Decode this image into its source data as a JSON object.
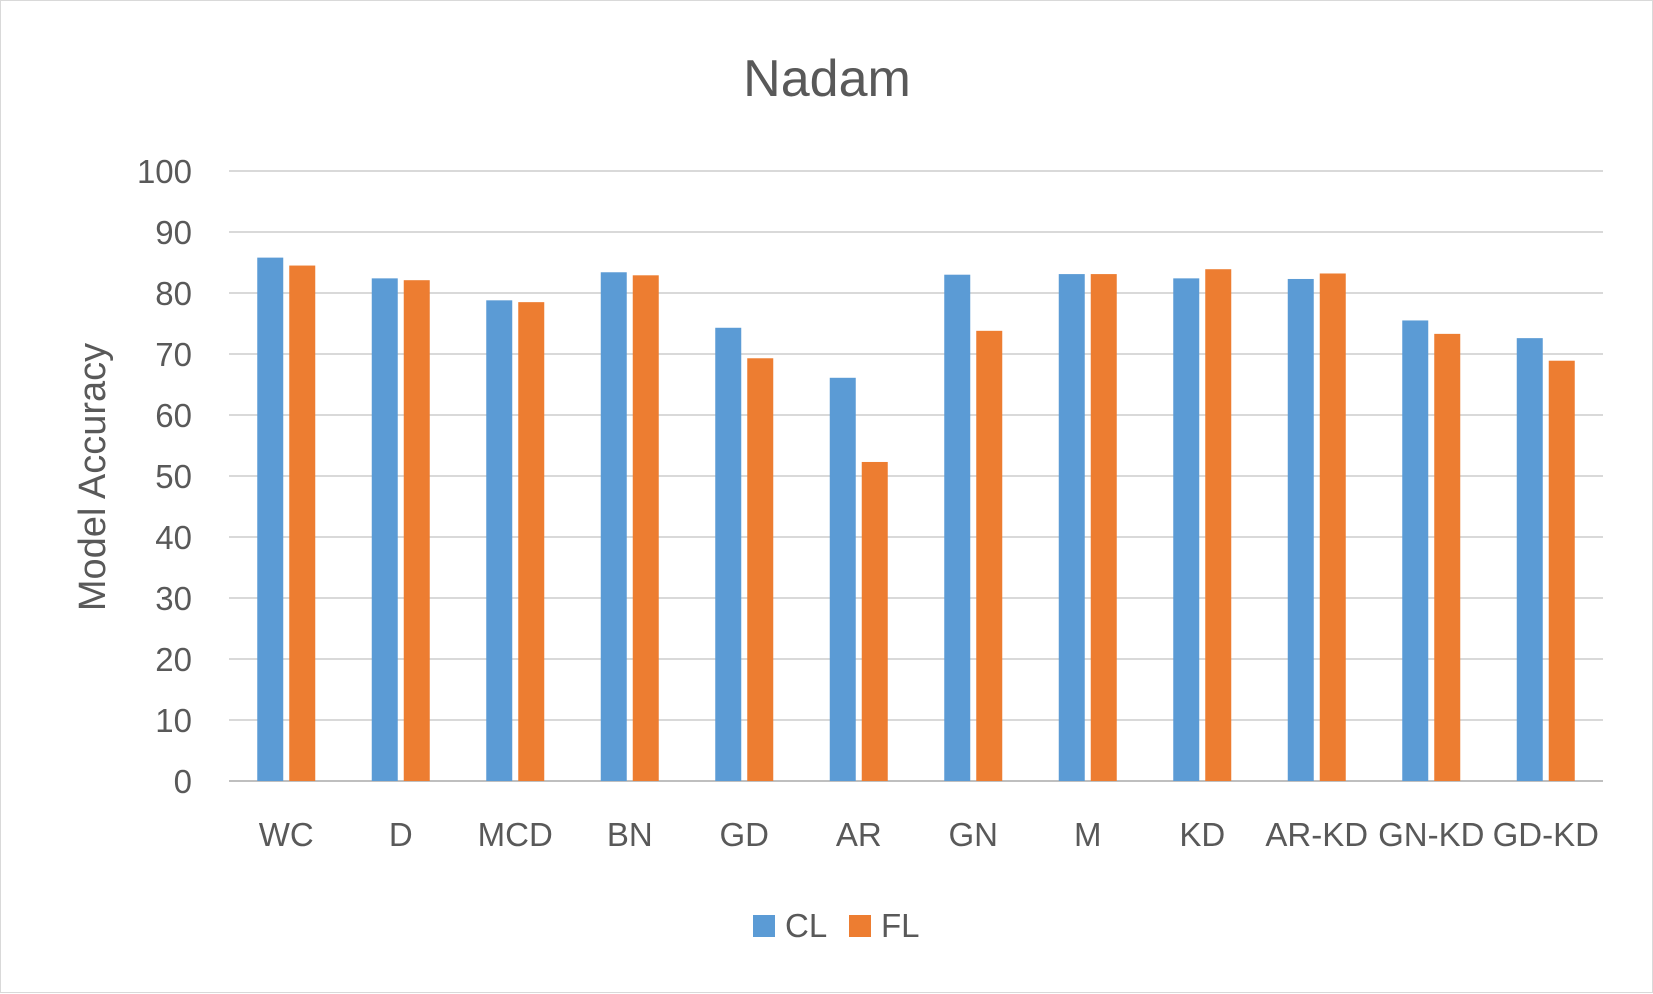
{
  "chart_data": {
    "type": "bar",
    "title": "Nadam",
    "xlabel": "",
    "ylabel": "Model Accuracy",
    "ylim": [
      0,
      100
    ],
    "yticks": [
      0,
      10,
      20,
      30,
      40,
      50,
      60,
      70,
      80,
      90,
      100
    ],
    "grid": true,
    "legend_position": "bottom",
    "categories": [
      "WC",
      "D",
      "MCD",
      "BN",
      "GD",
      "AR",
      "GN",
      "M",
      "KD",
      "AR-KD",
      "GN-KD",
      "GD-KD"
    ],
    "series": [
      {
        "name": "CL",
        "color": "#5b9bd5",
        "values": [
          85.8,
          82.4,
          78.8,
          83.4,
          74.3,
          66.1,
          83.0,
          83.1,
          82.4,
          82.3,
          75.5,
          72.6
        ]
      },
      {
        "name": "FL",
        "color": "#ed7d31",
        "values": [
          84.5,
          82.1,
          78.5,
          82.9,
          69.3,
          52.3,
          73.8,
          83.1,
          83.9,
          83.2,
          73.3,
          68.9
        ]
      }
    ]
  }
}
